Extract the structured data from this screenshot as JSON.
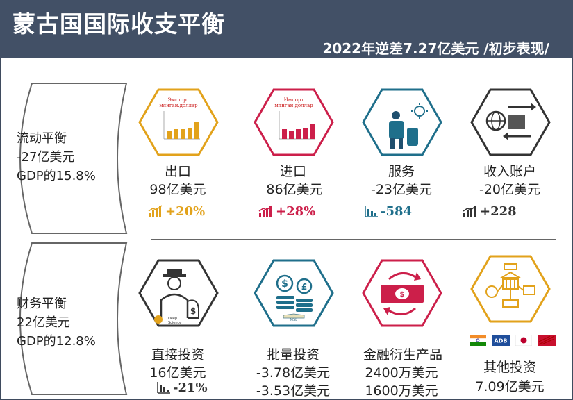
{
  "header": {
    "title": "蒙古国国际收支平衡",
    "subtitle": "2022年逆差7.27亿美元 /初步表现/"
  },
  "current": {
    "name": "流动平衡",
    "amount": "-27亿美元",
    "gdp": "GDP的15.8%",
    "items": [
      {
        "label": "出口",
        "value": "98亿美元",
        "change": "+20%",
        "color": "#e2a21b",
        "icon": "bar-chart-icon",
        "chart_caption": "Экспорт\nмянган.доллар"
      },
      {
        "label": "进口",
        "value": "86亿美元",
        "change": "+28%",
        "color": "#cc1f4a",
        "icon": "bar-chart-icon",
        "chart_caption": "Импорт\nмянган.доллар"
      },
      {
        "label": "服务",
        "value": "-23亿美元",
        "change": "-584",
        "color": "#1f6f8b",
        "icon": "traveler-icon"
      },
      {
        "label": "收入账户",
        "value": "-20亿美元",
        "change": "+228",
        "color": "#333333",
        "icon": "globe-transfer-icon"
      }
    ]
  },
  "financial": {
    "name": "财务平衡",
    "amount": "22亿美元",
    "gdp": "GDP的12.8%",
    "items": [
      {
        "label": "直接投资",
        "values": [
          "16亿美元"
        ],
        "change": "-21%",
        "color": "#333333",
        "icon": "investor-icon",
        "logo_text": "Deep Science"
      },
      {
        "label": "批量投资",
        "values": [
          "-3.78亿美元",
          "-3.53亿美元"
        ],
        "color": "#1f6f8b",
        "icon": "money-stack-icon",
        "logo_text": "MSE"
      },
      {
        "label": "金融衍生产品",
        "values": [
          "2400万美元",
          "1600万美元"
        ],
        "color": "#cc1f4a",
        "icon": "banknote-exchange-icon"
      },
      {
        "label": "其他投资",
        "values": [
          "7.09亿美元"
        ],
        "color": "#e2a21b",
        "icon": "institutions-icon",
        "flags": [
          "India",
          "ADB",
          "Japan",
          "China"
        ]
      }
    ]
  }
}
